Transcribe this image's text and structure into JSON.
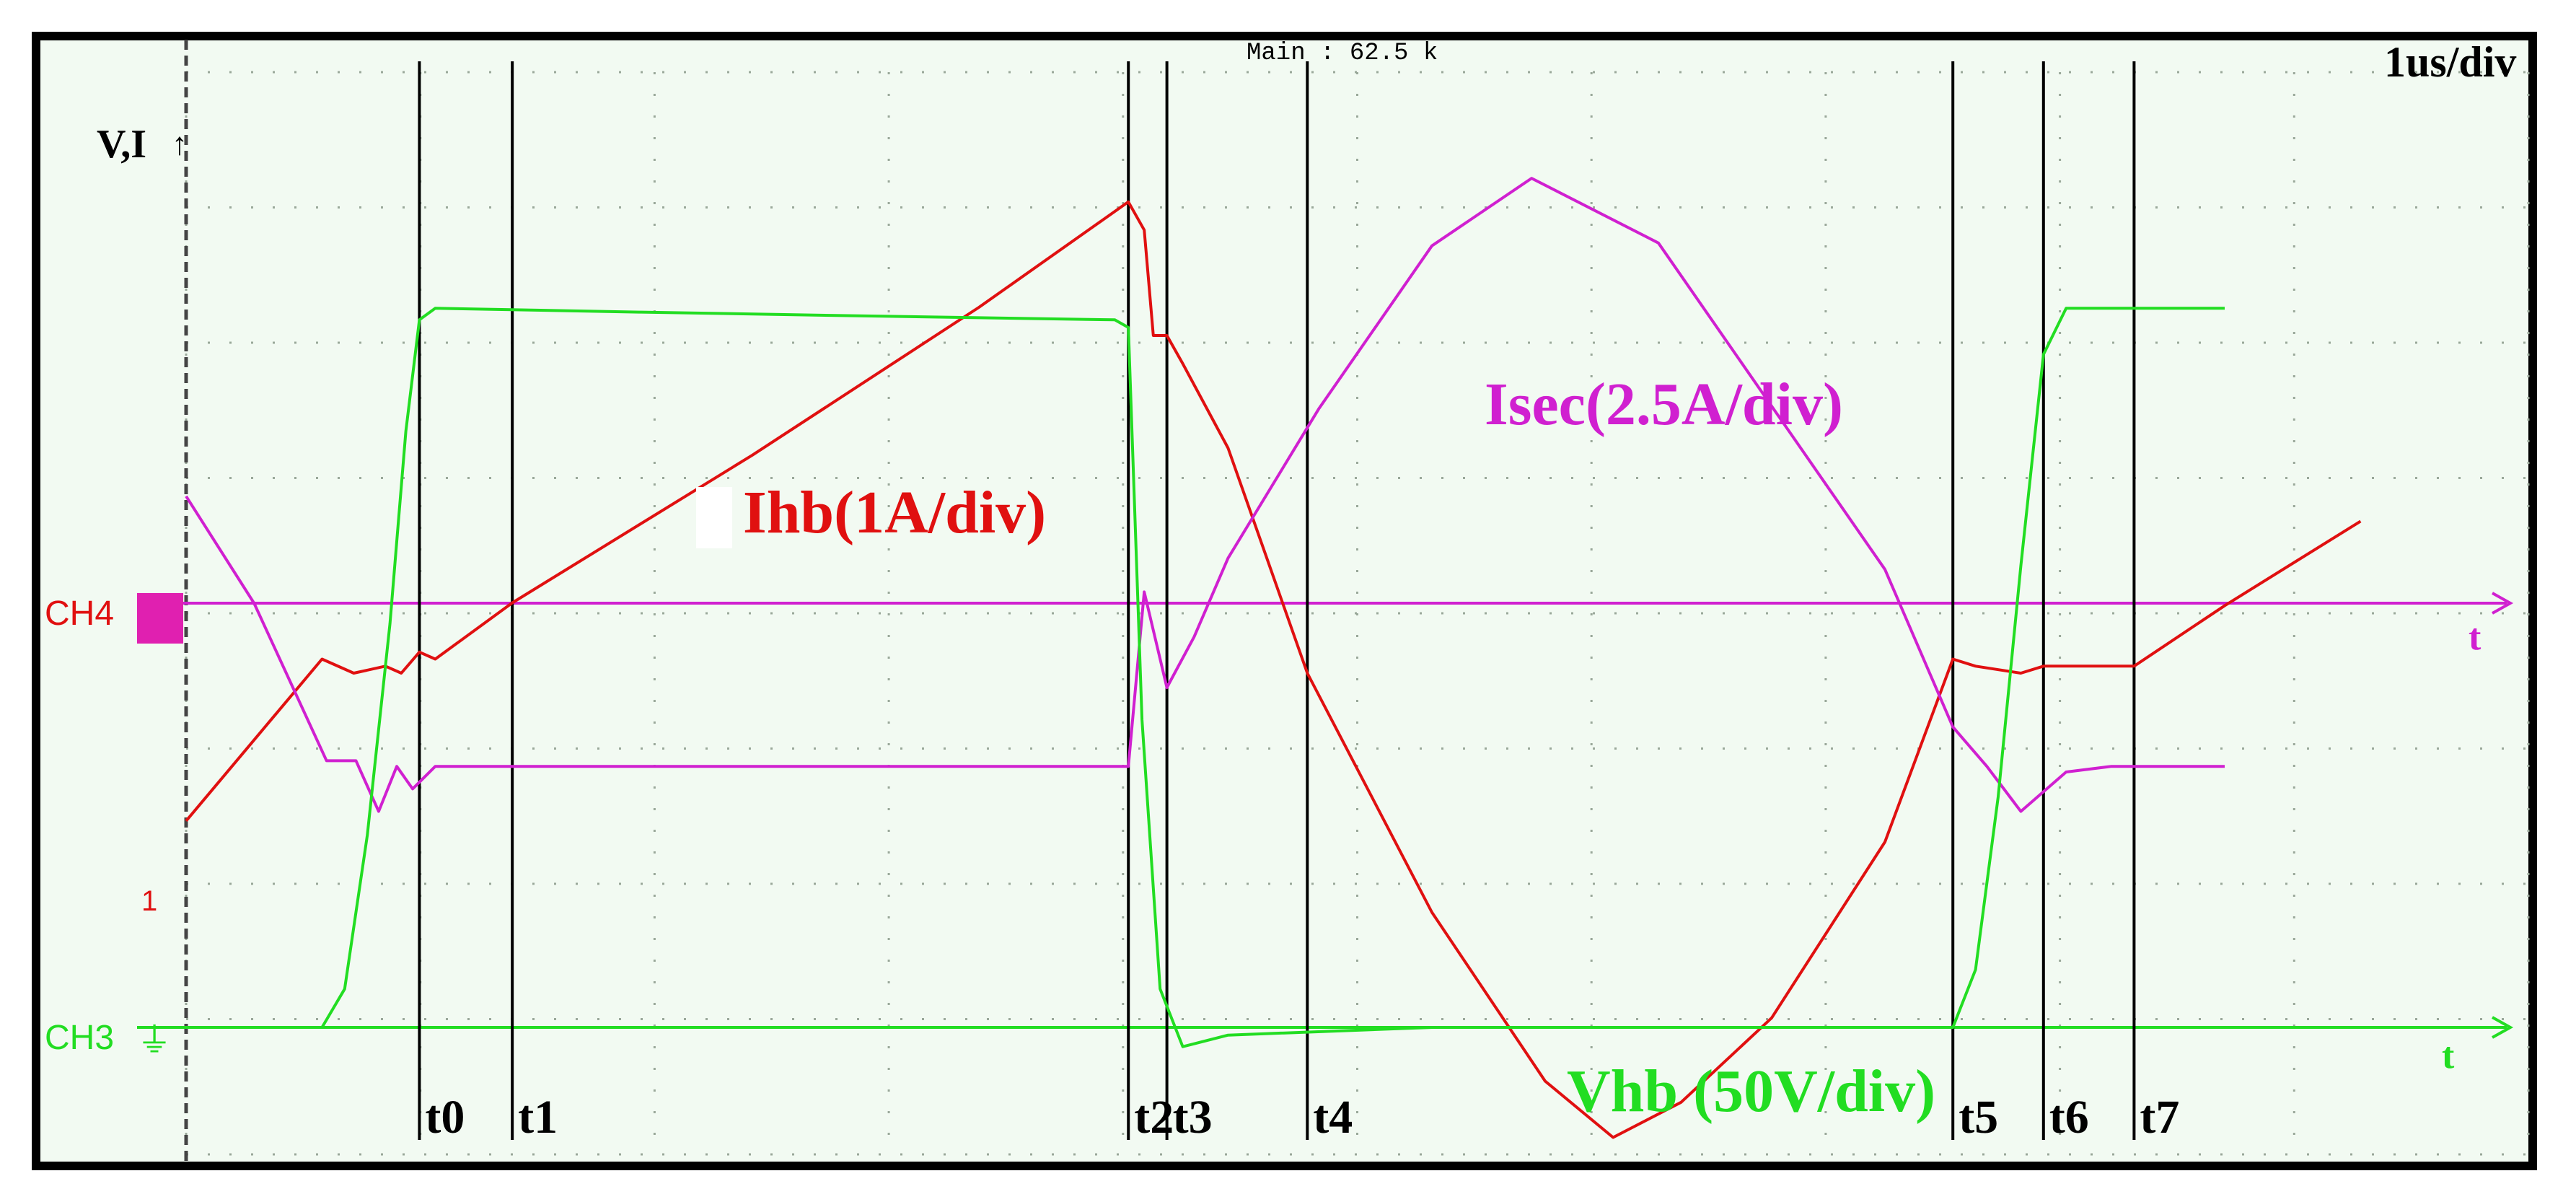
{
  "chart_data": {
    "type": "line",
    "title": "",
    "header": {
      "timebase": "1us/div",
      "trigger": "Main : 62.5 k"
    },
    "axis": {
      "y_label": "V,I",
      "x_label_isec": "t",
      "x_label_vhb": "t"
    },
    "channel_markers": {
      "ch_isec": "CH4",
      "ch_vhb": "CH3",
      "ch_ihb": "1"
    },
    "colors": {
      "background": "#f2faf2",
      "frame": "#000000",
      "grid_dots": "#9aa89a",
      "ihb": "#e01010",
      "isec": "#d020d0",
      "vhb": "#22dd22",
      "time_lines": "#000000"
    },
    "x_range_us": [
      0,
      10
    ],
    "grid": {
      "x_divisions": 10,
      "y_divisions": 8
    },
    "time_markers": [
      {
        "label": "t0",
        "t_us": 1.03
      },
      {
        "label": "t1",
        "t_us": 1.44
      },
      {
        "label": "t2",
        "t_us": 4.16
      },
      {
        "label": "t3",
        "t_us": 4.33
      },
      {
        "label": "t4",
        "t_us": 4.95
      },
      {
        "label": "t5",
        "t_us": 7.8
      },
      {
        "label": "t6",
        "t_us": 8.2
      },
      {
        "label": "t7",
        "t_us": 8.6
      }
    ],
    "series": [
      {
        "name": "Ihb(1A/div)",
        "unit": "A",
        "x_us": [
          0,
          0.6,
          0.74,
          0.88,
          0.95,
          1.03,
          1.1,
          1.44,
          2.5,
          3.5,
          4.16,
          4.23,
          4.27,
          4.33,
          4.4,
          4.6,
          4.95,
          5.5,
          6.0,
          6.3,
          6.6,
          7.0,
          7.5,
          7.8,
          7.9,
          8.1,
          8.2,
          8.35,
          8.6,
          9.0,
          9.6,
          10.4
        ],
        "values": [
          -1.05,
          0.1,
          0.0,
          0.05,
          0.0,
          0.15,
          0.1,
          0.5,
          1.55,
          2.6,
          3.35,
          3.15,
          2.4,
          2.4,
          2.2,
          1.6,
          0.0,
          -1.7,
          -2.9,
          -3.3,
          -3.05,
          -2.45,
          -1.2,
          0.1,
          0.05,
          0.0,
          0.05,
          0.05,
          0.05,
          0.48,
          1.08,
          1.88
        ]
      },
      {
        "name": "Isec(2.5A/div)",
        "unit": "A",
        "x_us": [
          0,
          0.3,
          0.62,
          0.75,
          0.85,
          0.93,
          1.0,
          1.1,
          1.3,
          2.5,
          4.0,
          4.16,
          4.23,
          4.33,
          4.45,
          4.6,
          5.0,
          5.5,
          5.94,
          6.5,
          7.0,
          7.5,
          7.8,
          7.95,
          8.1,
          8.3,
          8.5,
          9.0,
          10.4
        ],
        "values": [
          1.9,
          0.0,
          -2.8,
          -2.8,
          -3.7,
          -2.9,
          -3.3,
          -2.9,
          -2.9,
          -2.9,
          -2.9,
          -2.9,
          0.2,
          -1.5,
          -0.6,
          0.8,
          3.45,
          6.35,
          7.55,
          6.4,
          3.5,
          0.6,
          -2.2,
          -2.9,
          -3.7,
          -3.0,
          -2.9,
          -2.9,
          -2.9
        ]
      },
      {
        "name": "Vhb (50V/div)",
        "unit": "V",
        "x_us": [
          0,
          0.6,
          0.7,
          0.8,
          0.9,
          0.97,
          1.03,
          1.1,
          2.0,
          3.0,
          4.1,
          4.16,
          4.22,
          4.3,
          4.4,
          4.6,
          5.5,
          6.5,
          7.4,
          7.8,
          7.9,
          8.0,
          8.1,
          8.2,
          8.3,
          9.0,
          10.4
        ],
        "values": [
          0,
          0,
          10,
          50,
          105,
          155,
          184,
          187,
          186,
          185,
          184,
          182,
          80,
          10,
          -5,
          -2,
          0,
          0,
          0,
          0,
          15,
          60,
          120,
          175,
          187,
          187,
          187
        ]
      }
    ],
    "labels": {
      "ihb": "Ihb(1A/div)",
      "isec": "Isec(2.5A/div)",
      "vhb": "Vhb (50V/div)"
    }
  }
}
